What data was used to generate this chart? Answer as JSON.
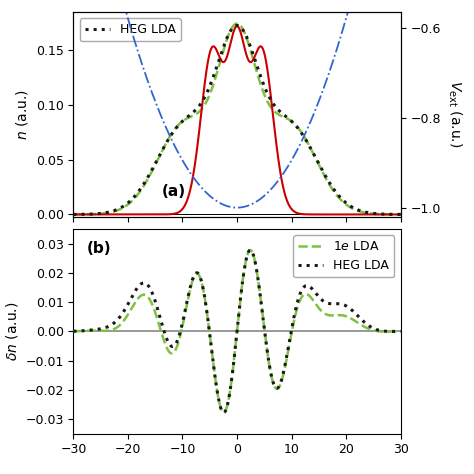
{
  "xlim": [
    -30,
    30
  ],
  "x_ticks": [
    -30,
    -20,
    -10,
    0,
    10,
    20,
    30
  ],
  "panel_a": {
    "ylim": [
      -0.002,
      0.185
    ],
    "yticks": [
      0.0,
      0.05,
      0.1,
      0.15
    ],
    "ylim2": [
      -1.02,
      -0.565
    ],
    "yticks2": [
      -1.0,
      -0.8,
      -0.6
    ]
  },
  "panel_b": {
    "ylim": [
      -0.035,
      0.035
    ],
    "yticks": [
      -0.03,
      -0.02,
      -0.01,
      0.0,
      0.01,
      0.02,
      0.03
    ]
  },
  "colors": {
    "exact": "#cc0000",
    "lda_1e": "#7dc242",
    "heg_lda": "#1a1a1a",
    "vext": "#3366cc",
    "hline": "#888888"
  }
}
